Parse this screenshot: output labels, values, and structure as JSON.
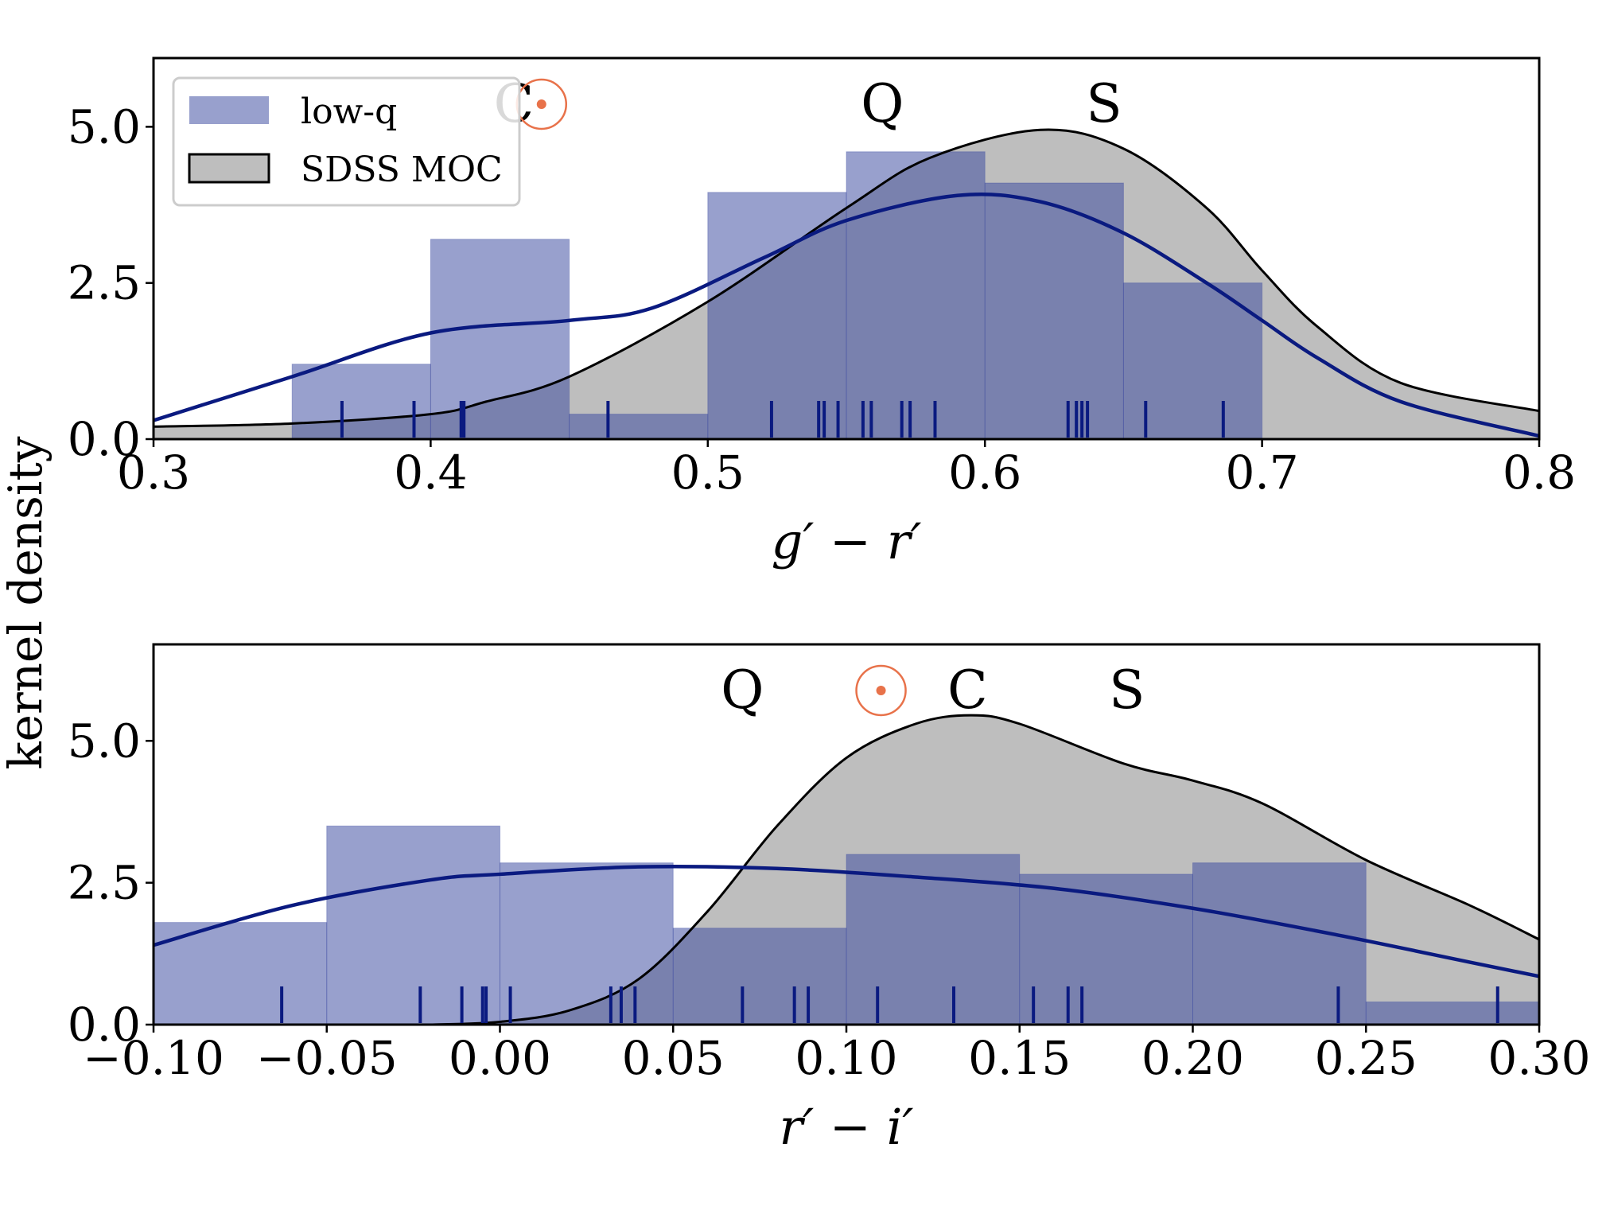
{
  "figure": {
    "ylabel": "kernel density",
    "legend": {
      "placement": "top-left of upper panel",
      "items": [
        {
          "label": "low-q",
          "kind": "histogram"
        },
        {
          "label": "SDSS MOC",
          "kind": "kde-filled"
        }
      ]
    },
    "colors": {
      "lowq_hist": "#3949a0",
      "lowq_curve": "#0a1a80",
      "moc_fill": "#bebebe",
      "moc_line": "#000000",
      "sun": "#e8724a"
    }
  },
  "chart_data": [
    {
      "type": "bar",
      "xlabel": "g′ − r′",
      "xlim": [
        0.3,
        0.8
      ],
      "ylim": [
        0,
        6.1
      ],
      "x_ticks": [
        "0.3",
        "0.4",
        "0.5",
        "0.6",
        "0.7",
        "0.8"
      ],
      "y_ticks": [
        "0.0",
        "2.5",
        "5.0"
      ],
      "class_labels": [
        {
          "text": "C",
          "x": 0.43
        },
        {
          "text": "Q",
          "x": 0.563
        },
        {
          "text": "S",
          "x": 0.643
        }
      ],
      "sun_marker_x": 0.44,
      "histogram": {
        "name": "low-q",
        "bin_edges": [
          0.35,
          0.4,
          0.45,
          0.5,
          0.55,
          0.6,
          0.65,
          0.7
        ],
        "values": [
          1.2,
          3.2,
          0.4,
          3.95,
          4.6,
          4.1,
          2.5
        ]
      },
      "moc_kde": {
        "name": "SDSS MOC",
        "x": [
          0.3,
          0.35,
          0.4,
          0.42,
          0.45,
          0.5,
          0.55,
          0.58,
          0.62,
          0.65,
          0.68,
          0.7,
          0.72,
          0.75,
          0.8
        ],
        "y": [
          0.2,
          0.25,
          0.4,
          0.6,
          1.0,
          2.2,
          3.7,
          4.5,
          4.95,
          4.65,
          3.7,
          2.7,
          1.8,
          0.9,
          0.45
        ]
      },
      "lowq_kde": {
        "name": "low-q",
        "x": [
          0.3,
          0.35,
          0.4,
          0.45,
          0.48,
          0.52,
          0.55,
          0.59,
          0.62,
          0.65,
          0.68,
          0.7,
          0.72,
          0.75,
          0.8
        ],
        "y": [
          0.3,
          1.0,
          1.7,
          1.9,
          2.1,
          2.9,
          3.5,
          3.9,
          3.8,
          3.3,
          2.5,
          1.9,
          1.3,
          0.6,
          0.05
        ]
      },
      "rug": [
        0.368,
        0.394,
        0.411,
        0.412,
        0.464,
        0.523,
        0.54,
        0.542,
        0.547,
        0.556,
        0.559,
        0.57,
        0.573,
        0.582,
        0.63,
        0.633,
        0.635,
        0.637,
        0.658,
        0.686
      ]
    },
    {
      "type": "bar",
      "xlabel": "r′ − i′",
      "xlim": [
        -0.1,
        0.3
      ],
      "ylim": [
        0,
        6.7
      ],
      "x_ticks": [
        "−0.10",
        "−0.05",
        "0.00",
        "0.05",
        "0.10",
        "0.15",
        "0.20",
        "0.25",
        "0.30"
      ],
      "y_ticks": [
        "0.0",
        "2.5",
        "5.0"
      ],
      "class_labels": [
        {
          "text": "Q",
          "x": 0.07
        },
        {
          "text": "C",
          "x": 0.135
        },
        {
          "text": "S",
          "x": 0.181
        }
      ],
      "sun_marker_x": 0.11,
      "histogram": {
        "name": "low-q",
        "bin_edges": [
          -0.1,
          -0.05,
          0.0,
          0.05,
          0.1,
          0.15,
          0.2,
          0.25,
          0.3
        ],
        "values": [
          1.8,
          3.5,
          2.85,
          1.7,
          3.0,
          2.65,
          2.85,
          0.4
        ]
      },
      "moc_kde": {
        "name": "SDSS MOC",
        "x": [
          -0.02,
          0.0,
          0.02,
          0.04,
          0.06,
          0.08,
          0.1,
          0.12,
          0.136,
          0.15,
          0.18,
          0.2,
          0.22,
          0.25,
          0.28,
          0.3
        ],
        "y": [
          0.0,
          0.05,
          0.25,
          0.8,
          2.0,
          3.5,
          4.7,
          5.3,
          5.45,
          5.3,
          4.6,
          4.3,
          3.9,
          2.9,
          2.1,
          1.5
        ]
      },
      "lowq_kde": {
        "name": "low-q",
        "x": [
          -0.1,
          -0.06,
          -0.02,
          0.0,
          0.04,
          0.08,
          0.12,
          0.16,
          0.2,
          0.24,
          0.28,
          0.3
        ],
        "y": [
          1.4,
          2.1,
          2.55,
          2.65,
          2.78,
          2.75,
          2.6,
          2.4,
          2.05,
          1.6,
          1.1,
          0.85
        ]
      },
      "rug": [
        -0.063,
        -0.023,
        -0.011,
        -0.005,
        -0.004,
        0.003,
        0.032,
        0.035,
        0.039,
        0.07,
        0.085,
        0.089,
        0.109,
        0.131,
        0.154,
        0.164,
        0.168,
        0.242,
        0.288
      ]
    }
  ]
}
